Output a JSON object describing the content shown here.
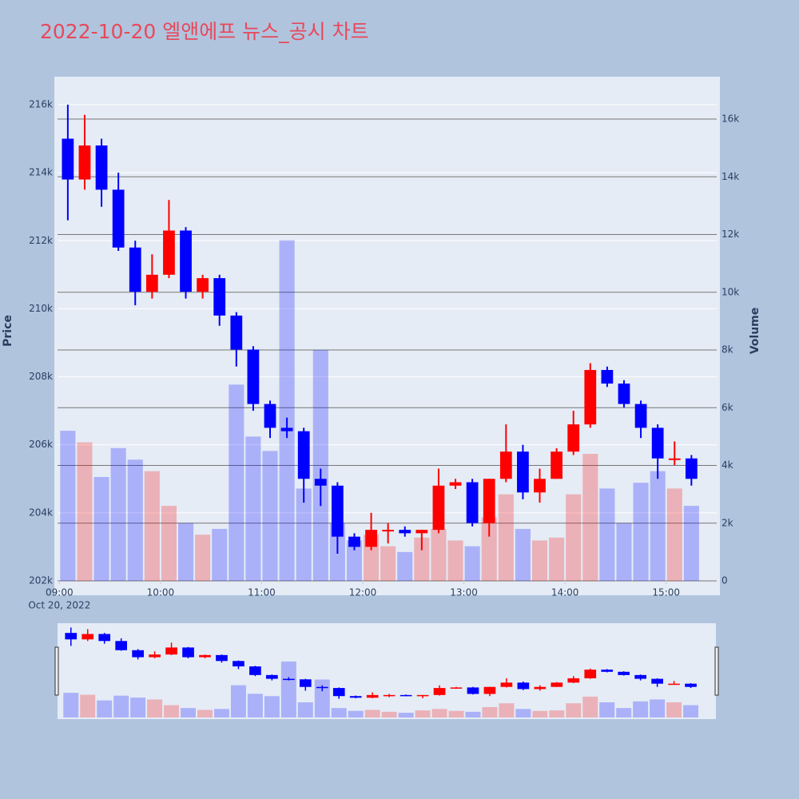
{
  "chart_data": {
    "type": "candlestick",
    "title": "2022-10-20 엘앤에프 뉴스_공시 차트",
    "ylabel": "Price",
    "y2label": "Volume",
    "x": [
      "2022-10-20 09:00",
      "2022-10-20 09:10",
      "2022-10-20 09:20",
      "2022-10-20 09:30",
      "2022-10-20 09:40",
      "2022-10-20 09:50",
      "2022-10-20 10:00",
      "2022-10-20 10:10",
      "2022-10-20 10:20",
      "2022-10-20 10:30",
      "2022-10-20 10:40",
      "2022-10-20 10:50",
      "2022-10-20 11:00",
      "2022-10-20 11:10",
      "2022-10-20 11:20",
      "2022-10-20 11:30",
      "2022-10-20 11:40",
      "2022-10-20 11:50",
      "2022-10-20 12:00",
      "2022-10-20 12:10",
      "2022-10-20 12:20",
      "2022-10-20 12:30",
      "2022-10-20 12:40",
      "2022-10-20 12:50",
      "2022-10-20 13:00",
      "2022-10-20 13:10",
      "2022-10-20 13:20",
      "2022-10-20 13:30",
      "2022-10-20 13:40",
      "2022-10-20 13:50",
      "2022-10-20 14:00",
      "2022-10-20 14:10",
      "2022-10-20 14:20",
      "2022-10-20 14:30",
      "2022-10-20 14:40",
      "2022-10-20 14:50",
      "2022-10-20 15:00",
      "2022-10-20 15:10"
    ],
    "open": [
      215000,
      213800,
      214800,
      213500,
      211800,
      210500,
      211000,
      212300,
      210500,
      210900,
      209800,
      208800,
      207200,
      206500,
      206400,
      205000,
      204800,
      203300,
      203000,
      203500,
      203500,
      203400,
      203500,
      204800,
      204900,
      203700,
      205000,
      205800,
      204600,
      205000,
      205800,
      206600,
      208200,
      207800,
      207200,
      206500,
      205600,
      205600
    ],
    "high": [
      216000,
      215700,
      215000,
      214000,
      212000,
      211600,
      213200,
      212400,
      211000,
      211000,
      209900,
      208900,
      207300,
      206800,
      206500,
      205300,
      204900,
      203400,
      204000,
      203700,
      203600,
      203500,
      205300,
      205000,
      205000,
      205000,
      206600,
      206000,
      205300,
      205900,
      207000,
      208400,
      208300,
      207900,
      207300,
      206600,
      206100,
      205700
    ],
    "low": [
      212600,
      213500,
      213000,
      211700,
      210100,
      210300,
      210900,
      210300,
      210300,
      209500,
      208300,
      207000,
      206200,
      206200,
      204300,
      204200,
      202800,
      202900,
      202900,
      203100,
      203300,
      202900,
      203400,
      204700,
      203600,
      203300,
      204900,
      204400,
      204300,
      205000,
      205700,
      206500,
      207700,
      207100,
      206200,
      205000,
      205400,
      204800
    ],
    "close": [
      213800,
      214800,
      213500,
      211800,
      210500,
      211000,
      212300,
      210500,
      210900,
      209800,
      208800,
      207200,
      206500,
      206400,
      205000,
      204800,
      203300,
      203000,
      203500,
      203500,
      203400,
      203500,
      204800,
      204900,
      203700,
      205000,
      205800,
      204600,
      205000,
      205800,
      206600,
      208200,
      207800,
      207200,
      206500,
      205600,
      205600,
      205000
    ],
    "volume": [
      5200,
      4800,
      3600,
      4600,
      4200,
      3800,
      2600,
      2000,
      1600,
      1800,
      6800,
      5000,
      4500,
      11800,
      3200,
      8000,
      2000,
      1400,
      1600,
      1200,
      1000,
      1500,
      1800,
      1400,
      1200,
      2200,
      3000,
      1800,
      1400,
      1500,
      3000,
      4400,
      3200,
      2000,
      3400,
      3800,
      3200,
      2600
    ],
    "increasing_color": "#ff0000",
    "decreasing_color": "#0000ff",
    "xlim": [
      "2022-10-20 08:57",
      "2022-10-20 15:30"
    ],
    "xticks": [
      {
        "value": "2022-10-20 09:00",
        "label": "09:00",
        "sublabel": "Oct 20, 2022"
      },
      {
        "value": "2022-10-20 10:00",
        "label": "10:00"
      },
      {
        "value": "2022-10-20 11:00",
        "label": "11:00"
      },
      {
        "value": "2022-10-20 12:00",
        "label": "12:00"
      },
      {
        "value": "2022-10-20 13:00",
        "label": "13:00"
      },
      {
        "value": "2022-10-20 14:00",
        "label": "14:00"
      },
      {
        "value": "2022-10-20 15:00",
        "label": "15:00"
      }
    ],
    "ylim": [
      202000,
      216500
    ],
    "yticks": [
      {
        "value": 202000,
        "label": "202k"
      },
      {
        "value": 204000,
        "label": "204k"
      },
      {
        "value": 206000,
        "label": "206k"
      },
      {
        "value": 208000,
        "label": "208k"
      },
      {
        "value": 210000,
        "label": "210k"
      },
      {
        "value": 212000,
        "label": "212k"
      },
      {
        "value": 214000,
        "label": "214k"
      },
      {
        "value": 216000,
        "label": "216k"
      }
    ],
    "y2lim": [
      0,
      16500
    ],
    "y2ticks": [
      0,
      {
        "value": 2000,
        "label": "2k"
      },
      {
        "value": 4000,
        "label": "4k"
      },
      {
        "value": 6000,
        "label": "6k"
      },
      {
        "value": 8000,
        "label": "8k"
      },
      {
        "value": 10000,
        "label": "10k"
      },
      {
        "value": 12000,
        "label": "12k"
      },
      {
        "value": 14000,
        "label": "14k"
      },
      {
        "value": 16000,
        "label": "16k"
      }
    ],
    "grid": true,
    "rangeslider": true
  }
}
